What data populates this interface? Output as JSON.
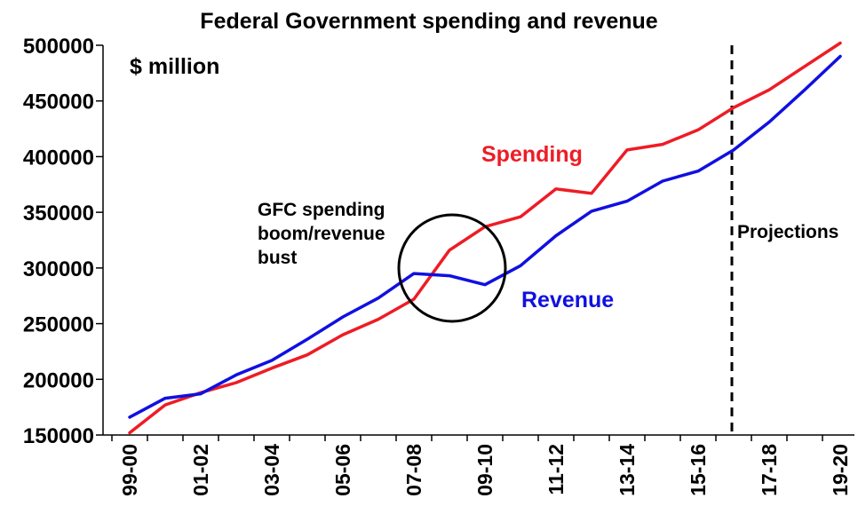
{
  "chart_data": {
    "type": "line",
    "title": "Federal Government spending and revenue",
    "unit_label": "$ million",
    "ylim": [
      150000,
      500000
    ],
    "y_ticks": [
      "500000",
      "450000",
      "400000",
      "350000",
      "300000",
      "250000",
      "200000",
      "150000"
    ],
    "x_ticks": [
      "99-00",
      "01-02",
      "03-04",
      "05-06",
      "07-08",
      "09-10",
      "11-12",
      "13-14",
      "15-16",
      "17-18",
      "19-20"
    ],
    "categories": [
      "99-00",
      "00-01",
      "01-02",
      "02-03",
      "03-04",
      "04-05",
      "05-06",
      "06-07",
      "07-08",
      "08-09",
      "09-10",
      "10-11",
      "11-12",
      "12-13",
      "13-14",
      "14-15",
      "15-16",
      "16-17",
      "17-18",
      "18-19",
      "19-20"
    ],
    "series": [
      {
        "name": "Spending",
        "color": "#ee1c25",
        "values": [
          152000,
          177000,
          188000,
          197000,
          210000,
          222000,
          240000,
          254000,
          272000,
          316000,
          337000,
          346000,
          371000,
          367000,
          406000,
          411000,
          424000,
          444000,
          460000,
          481000,
          502000
        ]
      },
      {
        "name": "Revenue",
        "color": "#1010e0",
        "values": [
          166000,
          183000,
          187000,
          204000,
          217000,
          236000,
          256000,
          273000,
          295000,
          293000,
          285000,
          302000,
          329000,
          351000,
          360000,
          378000,
          387000,
          406000,
          431000,
          460000,
          490000
        ]
      }
    ],
    "annotations": {
      "gfc_lines": [
        "GFC spending",
        "boom/revenue",
        "bust"
      ],
      "projections": "Projections",
      "projection_start": "16-17"
    },
    "grid": false,
    "legend": "inline labels"
  }
}
